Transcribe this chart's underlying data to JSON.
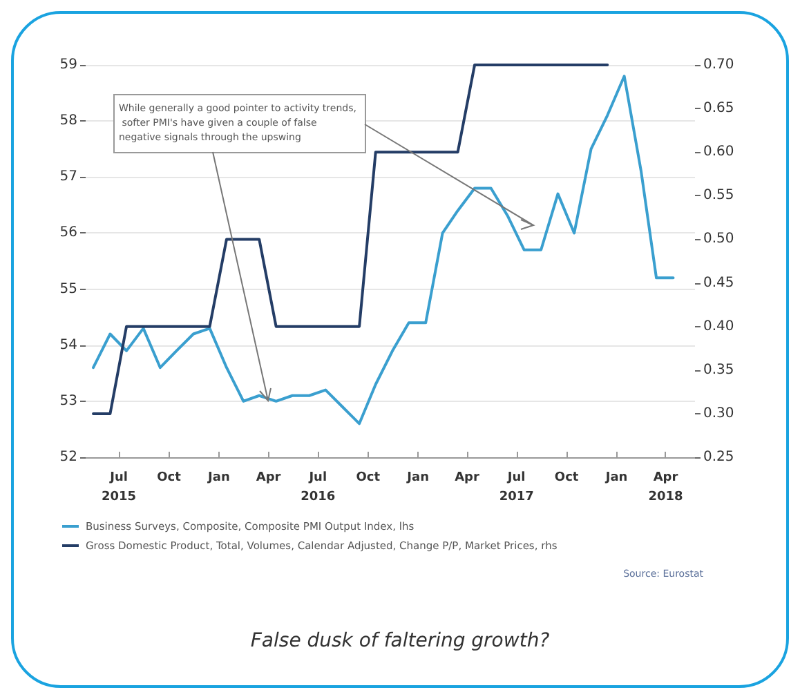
{
  "chart_data": {
    "type": "line",
    "x": [
      "2015-05-15",
      "2015-06-15",
      "2015-07-15",
      "2015-08-15",
      "2015-09-15",
      "2015-10-15",
      "2015-11-15",
      "2015-12-15",
      "2016-01-15",
      "2016-02-15",
      "2016-03-15",
      "2016-04-15",
      "2016-05-15",
      "2016-06-15",
      "2016-07-15",
      "2016-08-15",
      "2016-09-15",
      "2016-10-15",
      "2016-11-15",
      "2016-12-15",
      "2017-01-15",
      "2017-02-15",
      "2017-03-15",
      "2017-04-15",
      "2017-05-15",
      "2017-06-15",
      "2017-07-15",
      "2017-08-15",
      "2017-09-15",
      "2017-10-15",
      "2017-11-15",
      "2017-12-15",
      "2018-01-15",
      "2018-02-15",
      "2018-03-15",
      "2018-04-15"
    ],
    "series": [
      {
        "name": "Business Surveys, Composite, Composite PMI Output Index, lhs",
        "color": "#3a9fcf",
        "values": [
          53.6,
          54.2,
          53.9,
          54.3,
          53.6,
          53.9,
          54.2,
          54.3,
          53.6,
          53.0,
          53.1,
          53.0,
          53.1,
          53.1,
          53.2,
          52.9,
          52.6,
          53.3,
          53.9,
          54.4,
          54.4,
          56.0,
          56.4,
          56.8,
          56.8,
          56.3,
          55.7,
          55.7,
          56.7,
          56.0,
          57.5,
          58.1,
          58.8,
          57.1,
          55.2,
          55.2
        ]
      },
      {
        "name": "Gross Domestic Product, Total, Volumes, Calendar Adjusted, Change P/P, Market Prices, rhs",
        "color": "#243d66",
        "axis": "y2",
        "values": [
          0.3,
          0.3,
          0.4,
          0.4,
          0.4,
          0.4,
          0.4,
          0.4,
          0.5,
          0.5,
          0.5,
          0.4,
          0.4,
          0.4,
          0.4,
          0.4,
          0.4,
          0.6,
          0.6,
          0.6,
          0.6,
          0.6,
          0.6,
          0.7,
          0.7,
          0.7,
          0.7,
          0.7,
          0.7,
          0.7,
          0.7,
          0.7,
          null,
          null,
          null,
          null
        ]
      }
    ],
    "xlim": [
      "2015-05-01",
      "2018-05-25"
    ],
    "xticks": [
      {
        "value": "2015-07-01",
        "label": "Jul\n2015"
      },
      {
        "value": "2015-10-01",
        "label": "Oct"
      },
      {
        "value": "2016-01-01",
        "label": "Jan"
      },
      {
        "value": "2016-04-01",
        "label": "Apr"
      },
      {
        "value": "2016-07-01",
        "label": "Jul\n2016"
      },
      {
        "value": "2016-10-01",
        "label": "Oct"
      },
      {
        "value": "2017-01-01",
        "label": "Jan"
      },
      {
        "value": "2017-04-01",
        "label": "Apr"
      },
      {
        "value": "2017-07-01",
        "label": "Jul\n2017"
      },
      {
        "value": "2017-10-01",
        "label": "Oct"
      },
      {
        "value": "2018-01-01",
        "label": "Jan"
      },
      {
        "value": "2018-04-01",
        "label": "Apr\n2018"
      }
    ],
    "ylim": [
      52,
      59
    ],
    "yticks": [
      52,
      53,
      54,
      55,
      56,
      57,
      58,
      59
    ],
    "y2lim": [
      0.25,
      0.7
    ],
    "y2ticks": [
      {
        "value": 0.25,
        "label": "0.25"
      },
      {
        "value": 0.3,
        "label": "0.30"
      },
      {
        "value": 0.35,
        "label": "0.35"
      },
      {
        "value": 0.4,
        "label": "0.40"
      },
      {
        "value": 0.45,
        "label": "0.45"
      },
      {
        "value": 0.5,
        "label": "0.50"
      },
      {
        "value": 0.55,
        "label": "0.55"
      },
      {
        "value": 0.6,
        "label": "0.60"
      },
      {
        "value": 0.65,
        "label": "0.65"
      },
      {
        "value": 0.7,
        "label": "0.70"
      }
    ],
    "grid": "y",
    "legend": "bottom",
    "marker": "none",
    "line_style": "solid",
    "annotations": [
      "While generally a good pointer to activity trends, softer PMI's have given a couple of false negative signals through the upswing",
      "Source: Eurostat",
      "False dusk of faltering growth?"
    ]
  }
}
